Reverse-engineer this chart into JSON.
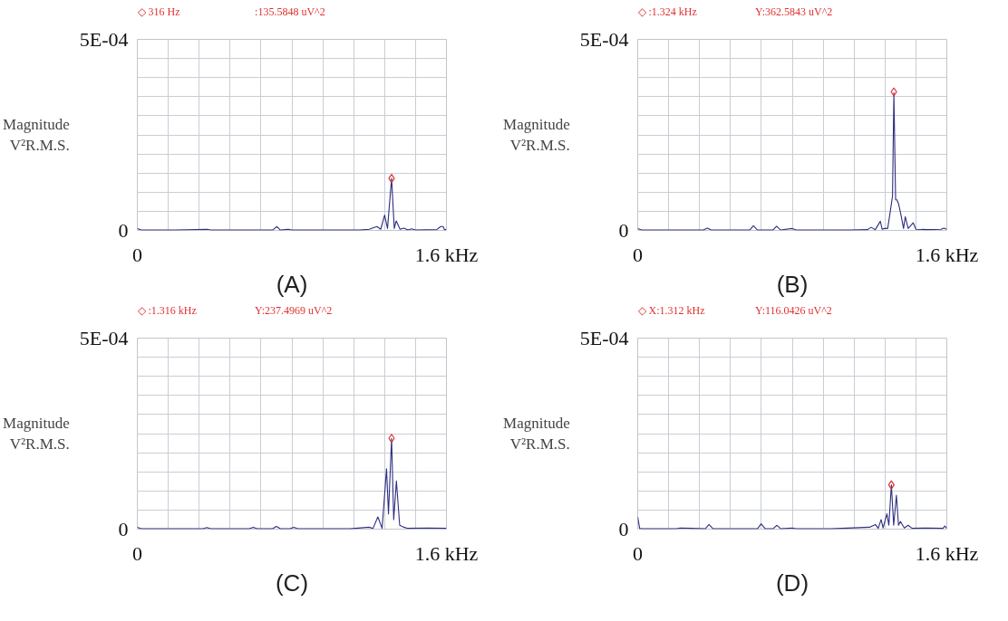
{
  "chart_data": [
    {
      "type": "line",
      "title": "(A)",
      "ylabel": "Magnitude V²R.M.S.",
      "annotations": [
        "◇ 316 Hz",
        ":135.5848 uV^2"
      ],
      "xlim": [
        0,
        1.6
      ],
      "ylim": [
        0,
        0.0005
      ],
      "xticks": [
        0,
        {
          "value": 0.16,
          "label": null
        },
        {
          "value": 0.32,
          "label": null
        },
        {
          "value": 0.48,
          "label": null
        },
        {
          "value": 0.64,
          "label": null
        },
        {
          "value": 0.8,
          "label": null
        },
        {
          "value": 0.96,
          "label": null
        },
        {
          "value": 1.12,
          "label": null
        },
        {
          "value": 1.28,
          "label": null
        },
        {
          "value": 1.44,
          "label": null
        },
        {
          "value": 1.6,
          "label": "1.6 kHz"
        }
      ],
      "yticks": [
        0,
        {
          "value": 5e-05,
          "label": null
        },
        {
          "value": 0.0001,
          "label": null
        },
        {
          "value": 0.00015,
          "label": null
        },
        {
          "value": 0.0002,
          "label": null
        },
        {
          "value": 0.00025,
          "label": null
        },
        {
          "value": 0.0003,
          "label": null
        },
        {
          "value": 0.00035,
          "label": null
        },
        {
          "value": 0.0004,
          "label": null
        },
        {
          "value": 0.00045,
          "label": null
        },
        {
          "value": 0.0005,
          "label": "5E-04"
        }
      ],
      "grid": true,
      "series": [
        {
          "color": "#2e2e80",
          "x": [
            0,
            0.02,
            0.2,
            0.36,
            0.38,
            0.6,
            0.7,
            0.723,
            0.74,
            0.78,
            0.8,
            1.15,
            1.2,
            1.24,
            1.26,
            1.28,
            1.295,
            1.316,
            1.33,
            1.34,
            1.36,
            1.38,
            1.4,
            1.42,
            1.44,
            1.55,
            1.57,
            1.583,
            1.59,
            1.6
          ],
          "values": [
            5e-06,
            1e-06,
            1e-06,
            3e-06,
            1e-06,
            1e-06,
            1e-06,
            1e-05,
            1e-06,
            3e-06,
            1e-06,
            1e-06,
            3e-06,
            1e-05,
            3e-06,
            4e-05,
            5e-06,
            0.000136,
            5e-06,
            2.5e-05,
            3e-06,
            6e-06,
            1e-06,
            4e-06,
            1e-06,
            2e-06,
            1e-05,
            1e-05,
            2e-06,
            2e-06
          ]
        },
        {
          "type": "scatter",
          "marker": "diamond",
          "color": "#e03030",
          "x": [
            1.316
          ],
          "values": [
            0.000136
          ]
        }
      ]
    },
    {
      "type": "line",
      "title": "(B)",
      "ylabel": "Magnitude V²R.M.S.",
      "annotations": [
        "◇ :1.324 kHz",
        "Y:362.5843 uV^2"
      ],
      "xlim": [
        0,
        1.6
      ],
      "ylim": [
        0,
        0.0005
      ],
      "xticks": [
        0,
        {
          "value": 0.16,
          "label": null
        },
        {
          "value": 0.32,
          "label": null
        },
        {
          "value": 0.48,
          "label": null
        },
        {
          "value": 0.64,
          "label": null
        },
        {
          "value": 0.8,
          "label": null
        },
        {
          "value": 0.96,
          "label": null
        },
        {
          "value": 1.12,
          "label": null
        },
        {
          "value": 1.28,
          "label": null
        },
        {
          "value": 1.44,
          "label": null
        },
        {
          "value": 1.6,
          "label": "1.6 kHz"
        }
      ],
      "yticks": [
        0,
        {
          "value": 5e-05,
          "label": null
        },
        {
          "value": 0.0001,
          "label": null
        },
        {
          "value": 0.00015,
          "label": null
        },
        {
          "value": 0.0002,
          "label": null
        },
        {
          "value": 0.00025,
          "label": null
        },
        {
          "value": 0.0003,
          "label": null
        },
        {
          "value": 0.00035,
          "label": null
        },
        {
          "value": 0.0004,
          "label": null
        },
        {
          "value": 0.00045,
          "label": null
        },
        {
          "value": 0.0005,
          "label": "5E-04"
        }
      ],
      "grid": true,
      "series": [
        {
          "color": "#2e2e80",
          "x": [
            0,
            0.02,
            0.2,
            0.34,
            0.361,
            0.38,
            0.58,
            0.599,
            0.62,
            0.7,
            0.719,
            0.74,
            0.8,
            0.82,
            1.1,
            1.19,
            1.208,
            1.23,
            1.256,
            1.265,
            1.277,
            1.294,
            1.308,
            1.319,
            1.326,
            1.335,
            1.342,
            1.35,
            1.363,
            1.376,
            1.385,
            1.4,
            1.426,
            1.44,
            1.5,
            1.57,
            1.585,
            1.6
          ],
          "values": [
            5e-06,
            1e-06,
            1e-06,
            1e-06,
            6e-06,
            1e-06,
            1e-06,
            1.2e-05,
            1e-06,
            1e-06,
            1.1e-05,
            1e-06,
            5e-06,
            1e-06,
            1e-06,
            2e-06,
            8e-06,
            2e-06,
            2.4e-05,
            3e-06,
            5e-06,
            5e-06,
            5.2e-05,
            9e-05,
            0.00036,
            8e-05,
            8e-05,
            7e-05,
            4e-05,
            5e-06,
            3.6e-05,
            5e-06,
            2e-05,
            3e-06,
            2e-06,
            3e-06,
            6e-06,
            3e-06
          ]
        },
        {
          "type": "scatter",
          "marker": "diamond",
          "color": "#e03030",
          "x": [
            1.326
          ],
          "values": [
            0.0003626
          ]
        }
      ]
    },
    {
      "type": "line",
      "title": "(C)",
      "ylabel": "Magnitude V²R.M.S.",
      "annotations": [
        "◇ :1.316 kHz",
        "Y:237.4969 uV^2"
      ],
      "xlim": [
        0,
        1.6
      ],
      "ylim": [
        0,
        0.0005
      ],
      "xticks": [
        0,
        {
          "value": 0.16,
          "label": null
        },
        {
          "value": 0.32,
          "label": null
        },
        {
          "value": 0.48,
          "label": null
        },
        {
          "value": 0.64,
          "label": null
        },
        {
          "value": 0.8,
          "label": null
        },
        {
          "value": 0.96,
          "label": null
        },
        {
          "value": 1.12,
          "label": null
        },
        {
          "value": 1.28,
          "label": null
        },
        {
          "value": 1.44,
          "label": null
        },
        {
          "value": 1.6,
          "label": "1.6 kHz"
        }
      ],
      "yticks": [
        0,
        {
          "value": 5e-05,
          "label": null
        },
        {
          "value": 0.0001,
          "label": null
        },
        {
          "value": 0.00015,
          "label": null
        },
        {
          "value": 0.0002,
          "label": null
        },
        {
          "value": 0.00025,
          "label": null
        },
        {
          "value": 0.0003,
          "label": null
        },
        {
          "value": 0.00035,
          "label": null
        },
        {
          "value": 0.0004,
          "label": null
        },
        {
          "value": 0.00045,
          "label": null
        },
        {
          "value": 0.0005,
          "label": "5E-04"
        }
      ],
      "grid": true,
      "series": [
        {
          "color": "#2e2e80",
          "x": [
            0,
            0.02,
            0.34,
            0.36,
            0.38,
            0.58,
            0.6,
            0.62,
            0.7,
            0.72,
            0.74,
            0.79,
            0.81,
            0.83,
            1.1,
            1.2,
            1.22,
            1.245,
            1.267,
            1.29,
            1.3,
            1.316,
            1.327,
            1.341,
            1.358,
            1.38,
            1.4,
            1.5,
            1.6
          ],
          "values": [
            5e-06,
            1e-06,
            1e-06,
            4e-06,
            1e-06,
            1e-06,
            5e-06,
            1e-06,
            1e-06,
            7e-06,
            1e-06,
            1e-06,
            5e-06,
            1e-06,
            1e-06,
            5e-06,
            2e-06,
            3.2e-05,
            2e-06,
            0.000158,
            4e-05,
            0.0002375,
            2.5e-05,
            0.000126,
            1e-05,
            5e-06,
            2e-06,
            3e-06,
            2e-06
          ]
        },
        {
          "type": "scatter",
          "marker": "diamond",
          "color": "#e03030",
          "x": [
            1.316
          ],
          "values": [
            0.0002375
          ]
        }
      ]
    },
    {
      "type": "line",
      "title": "(D)",
      "ylabel": "Magnitude V²R.M.S.",
      "annotations": [
        "◇ X:1.312 kHz",
        "Y:116.0426 uV^2"
      ],
      "xlim": [
        0,
        1.6
      ],
      "ylim": [
        0,
        0.0005
      ],
      "xticks": [
        0,
        {
          "value": 0.16,
          "label": null
        },
        {
          "value": 0.32,
          "label": null
        },
        {
          "value": 0.48,
          "label": null
        },
        {
          "value": 0.64,
          "label": null
        },
        {
          "value": 0.8,
          "label": null
        },
        {
          "value": 0.96,
          "label": null
        },
        {
          "value": 1.12,
          "label": null
        },
        {
          "value": 1.28,
          "label": null
        },
        {
          "value": 1.44,
          "label": null
        },
        {
          "value": 1.6,
          "label": "1.6 kHz"
        }
      ],
      "yticks": [
        0,
        {
          "value": 5e-05,
          "label": null
        },
        {
          "value": 0.0001,
          "label": null
        },
        {
          "value": 0.00015,
          "label": null
        },
        {
          "value": 0.0002,
          "label": null
        },
        {
          "value": 0.00025,
          "label": null
        },
        {
          "value": 0.0003,
          "label": null
        },
        {
          "value": 0.00035,
          "label": null
        },
        {
          "value": 0.0004,
          "label": null
        },
        {
          "value": 0.00045,
          "label": null
        },
        {
          "value": 0.0005,
          "label": "5E-04"
        }
      ],
      "grid": true,
      "series": [
        {
          "color": "#2e2e80",
          "x": [
            0,
            0.01,
            0.02,
            0.2,
            0.22,
            0.35,
            0.369,
            0.39,
            0.6,
            0.62,
            0.639,
            0.66,
            0.7,
            0.721,
            0.74,
            0.8,
            0.82,
            1.0,
            1.2,
            1.23,
            1.245,
            1.26,
            1.27,
            1.29,
            1.3,
            1.313,
            1.325,
            1.339,
            1.35,
            1.36,
            1.38,
            1.4,
            1.42,
            1.5,
            1.58,
            1.59,
            1.6
          ],
          "values": [
            3.2e-05,
            2e-06,
            1e-06,
            1e-06,
            3e-06,
            1e-06,
            1.2e-05,
            1e-06,
            1e-06,
            1e-06,
            1.4e-05,
            1e-06,
            1e-06,
            1e-05,
            1e-06,
            3e-06,
            1e-06,
            1e-06,
            5e-06,
            1.2e-05,
            2e-06,
            2.5e-05,
            3e-06,
            4e-05,
            1e-05,
            0.000116,
            1e-05,
            8.9e-05,
            1e-05,
            2e-05,
            3e-06,
            1e-05,
            2e-06,
            3e-06,
            2e-06,
            8e-06,
            2e-06
          ]
        },
        {
          "type": "scatter",
          "marker": "diamond",
          "color": "#e03030",
          "x": [
            1.313
          ],
          "values": [
            0.000116
          ]
        }
      ]
    }
  ]
}
